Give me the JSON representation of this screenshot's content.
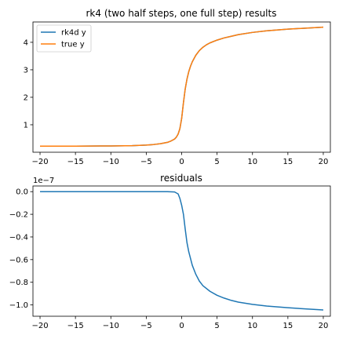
{
  "chart_data": [
    {
      "type": "line",
      "title": "rk4 (two half steps, one full step) results",
      "xlabel": "",
      "ylabel": "",
      "xlim": [
        -21,
        21
      ],
      "ylim": [
        0.0,
        4.74
      ],
      "xticks": [
        -20,
        -15,
        -10,
        -5,
        0,
        5,
        10,
        15,
        20
      ],
      "xtick_labels": [
        "−20",
        "−15",
        "−10",
        "−5",
        "0",
        "5",
        "10",
        "15",
        "20"
      ],
      "yticks": [
        1,
        2,
        3,
        4
      ],
      "ytick_labels": [
        "1",
        "2",
        "3",
        "4"
      ],
      "grid": false,
      "legend": "upper-left",
      "series": [
        {
          "name": "rk4d y",
          "color": "#1f77b4",
          "x": [
            -20,
            -15,
            -10,
            -7,
            -5,
            -4,
            -3,
            -2,
            -1.5,
            -1,
            -0.75,
            -0.5,
            -0.25,
            0,
            0.25,
            0.5,
            0.75,
            1,
            1.25,
            1.5,
            2,
            2.5,
            3,
            3.5,
            4,
            5,
            6,
            7,
            8,
            10,
            12,
            15,
            20
          ],
          "y": [
            0.22,
            0.22,
            0.23,
            0.24,
            0.26,
            0.28,
            0.31,
            0.36,
            0.41,
            0.48,
            0.55,
            0.66,
            0.86,
            1.23,
            1.8,
            2.3,
            2.66,
            2.93,
            3.13,
            3.29,
            3.53,
            3.7,
            3.82,
            3.91,
            3.98,
            4.08,
            4.16,
            4.22,
            4.28,
            4.36,
            4.42,
            4.48,
            4.55
          ]
        },
        {
          "name": "true y",
          "color": "#ff7f0e",
          "x": [
            -20,
            -15,
            -10,
            -7,
            -5,
            -4,
            -3,
            -2,
            -1.5,
            -1,
            -0.75,
            -0.5,
            -0.25,
            0,
            0.25,
            0.5,
            0.75,
            1,
            1.25,
            1.5,
            2,
            2.5,
            3,
            3.5,
            4,
            5,
            6,
            7,
            8,
            10,
            12,
            15,
            20
          ],
          "y": [
            0.22,
            0.22,
            0.23,
            0.24,
            0.26,
            0.28,
            0.31,
            0.36,
            0.41,
            0.48,
            0.55,
            0.66,
            0.86,
            1.23,
            1.8,
            2.3,
            2.66,
            2.93,
            3.13,
            3.29,
            3.53,
            3.7,
            3.82,
            3.91,
            3.98,
            4.08,
            4.16,
            4.22,
            4.28,
            4.36,
            4.42,
            4.48,
            4.55
          ]
        }
      ]
    },
    {
      "type": "line",
      "title": "residuals",
      "xlabel": "",
      "ylabel": "",
      "offset_text": "1e−7",
      "xlim": [
        -21,
        21
      ],
      "ylim": [
        -1.1,
        0.05
      ],
      "xticks": [
        -20,
        -15,
        -10,
        -5,
        0,
        5,
        10,
        15,
        20
      ],
      "xtick_labels": [
        "−20",
        "−15",
        "−10",
        "−5",
        "0",
        "5",
        "10",
        "15",
        "20"
      ],
      "yticks": [
        0.0,
        -0.2,
        -0.4,
        -0.6,
        -0.8,
        -1.0
      ],
      "ytick_labels": [
        "0.0",
        "−0.2",
        "−0.4",
        "−0.6",
        "−0.8",
        "−1.0"
      ],
      "grid": false,
      "series": [
        {
          "color": "#1f77b4",
          "x": [
            -20,
            -15,
            -10,
            -5,
            -2,
            -1,
            -0.5,
            -0.25,
            0,
            0.25,
            0.5,
            0.75,
            1,
            1.5,
            2,
            2.5,
            3,
            4,
            5,
            6,
            7,
            8,
            10,
            12,
            15,
            20
          ],
          "y": [
            0.0,
            0.0,
            0.0,
            0.0,
            0.0,
            -0.003,
            -0.02,
            -0.06,
            -0.12,
            -0.2,
            -0.33,
            -0.45,
            -0.53,
            -0.65,
            -0.73,
            -0.79,
            -0.83,
            -0.88,
            -0.915,
            -0.94,
            -0.96,
            -0.975,
            -0.995,
            -1.01,
            -1.025,
            -1.045
          ]
        }
      ]
    }
  ]
}
